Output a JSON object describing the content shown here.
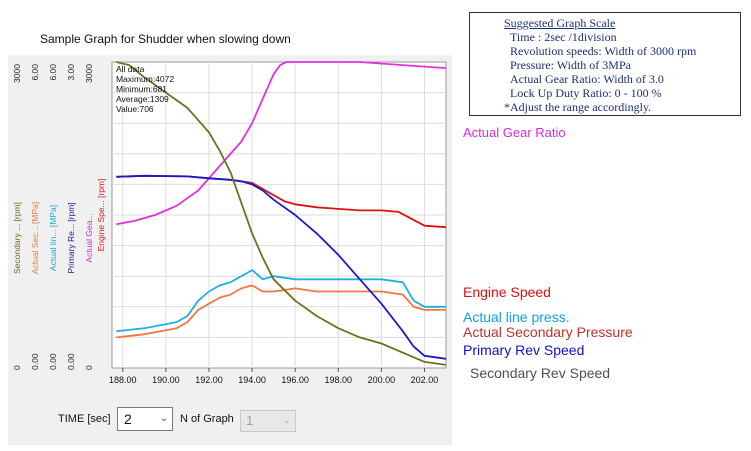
{
  "title": "Sample Graph for Shudder when slowing down",
  "scale_note": {
    "heading": "Suggested Graph Scale",
    "lines": [
      "Time             : 2sec /1division",
      "Revolution speeds: Width of 3000 rpm",
      "Pressure: Width of 3MPa",
      "Actual Gear Ratio: Width of 3.0",
      "Lock Up Duty Ratio: 0 - 100 %"
    ],
    "note": "*Adjust the range accordingly."
  },
  "stats": {
    "line1": "All data",
    "line2": "Maximum:4072",
    "line3": "Minimum:681",
    "line4": "Average:1309",
    "line5": "Value:706"
  },
  "controls": {
    "time_label": "TIME [sec]",
    "time_value": "2",
    "ngraph_label": "N of Graph",
    "ngraph_value": "1"
  },
  "chart_data": {
    "type": "line",
    "xlim": [
      187.5,
      203.0
    ],
    "x_ticks": [
      "188.00",
      "190.00",
      "192.00",
      "194.00",
      "196.00",
      "198.00",
      "200.00",
      "202.00"
    ],
    "x_tick_values": [
      188,
      190,
      192,
      194,
      196,
      198,
      200,
      202
    ],
    "axes": [
      {
        "name": "Secondary ... [rpm]",
        "color": "#6b6b1a",
        "top": "3000",
        "bottom": "0"
      },
      {
        "name": "Actual Sec... [MPa]",
        "color": "#e07a3a",
        "top": "6.00",
        "bottom": "0.00"
      },
      {
        "name": "Actual lin... [MPa]",
        "color": "#20a8d8",
        "top": "6.00",
        "bottom": "0.00"
      },
      {
        "name": "Primary Re... [rpm]",
        "color": "#1a1aa0",
        "top": "3.00",
        "bottom": "0.00"
      },
      {
        "name": "Actual Gea...",
        "color": "#cc30cc",
        "top": "3000",
        "bottom": "0"
      },
      {
        "name": "Engine Spe... [rpm]",
        "color": "#d02020",
        "top": "3000",
        "bottom": "0"
      }
    ],
    "grid": true,
    "series": [
      {
        "name": "Actual Gear Ratio",
        "label_color": "#d030d0",
        "color": "#e030e0",
        "x": [
          187.7,
          188.5,
          189.5,
          190.5,
          191.5,
          192.5,
          193.5,
          194.0,
          194.5,
          195.0,
          195.3,
          195.6,
          196.0,
          197.0,
          199.0,
          201.0,
          203.0
        ],
        "y": [
          0.47,
          0.48,
          0.5,
          0.53,
          0.58,
          0.66,
          0.74,
          0.8,
          0.88,
          0.96,
          0.99,
          1.0,
          1.0,
          1.0,
          1.0,
          0.99,
          0.98
        ]
      },
      {
        "name": "Engine Speed",
        "label_color": "#dd1010",
        "color": "#dd1010",
        "x": [
          187.7,
          189.0,
          191.0,
          192.0,
          193.0,
          194.0,
          194.5,
          195.0,
          195.5,
          196.0,
          197.0,
          198.0,
          199.0,
          200.0,
          200.8,
          202.0,
          203.0
        ],
        "y": [
          0.625,
          0.628,
          0.626,
          0.62,
          0.615,
          0.605,
          0.585,
          0.565,
          0.545,
          0.535,
          0.525,
          0.52,
          0.515,
          0.515,
          0.51,
          0.465,
          0.46
        ]
      },
      {
        "name": "Actual line press.",
        "label_color": "#10a0e0",
        "color": "#20b0e0",
        "x": [
          187.7,
          189.0,
          190.5,
          191.0,
          191.5,
          192.0,
          192.5,
          193.0,
          193.5,
          194.0,
          194.5,
          195.0,
          196.0,
          197.0,
          198.0,
          199.0,
          200.0,
          201.0,
          201.5,
          202.0,
          203.0
        ],
        "y": [
          0.12,
          0.13,
          0.15,
          0.17,
          0.22,
          0.25,
          0.27,
          0.28,
          0.3,
          0.32,
          0.29,
          0.3,
          0.29,
          0.29,
          0.29,
          0.29,
          0.29,
          0.28,
          0.22,
          0.2,
          0.2
        ]
      },
      {
        "name": "Actual Secondary Pressure",
        "label_color": "#c03030",
        "color": "#f07840",
        "x": [
          187.7,
          189.0,
          190.5,
          191.0,
          191.5,
          192.0,
          192.5,
          193.0,
          193.5,
          194.0,
          194.5,
          195.0,
          196.0,
          197.0,
          198.0,
          199.0,
          200.0,
          201.0,
          201.5,
          202.0,
          203.0
        ],
        "y": [
          0.1,
          0.11,
          0.13,
          0.15,
          0.19,
          0.21,
          0.23,
          0.24,
          0.26,
          0.27,
          0.25,
          0.25,
          0.26,
          0.25,
          0.25,
          0.25,
          0.25,
          0.24,
          0.2,
          0.19,
          0.19
        ]
      },
      {
        "name": "Primary Rev Speed",
        "label_color": "#1010c0",
        "color": "#1a1acc",
        "x": [
          187.7,
          189.0,
          191.0,
          192.0,
          193.0,
          193.5,
          194.0,
          194.5,
          195.0,
          196.0,
          197.0,
          198.0,
          199.0,
          200.0,
          201.0,
          201.5,
          202.0,
          203.0
        ],
        "y": [
          0.625,
          0.628,
          0.626,
          0.62,
          0.615,
          0.61,
          0.6,
          0.58,
          0.55,
          0.5,
          0.44,
          0.37,
          0.29,
          0.21,
          0.12,
          0.07,
          0.04,
          0.03
        ]
      },
      {
        "name": "Secondary Rev Speed",
        "label_color": "#505050",
        "color": "#707020",
        "x": [
          187.7,
          188.3,
          189.0,
          190.0,
          191.0,
          192.0,
          192.5,
          193.0,
          193.5,
          194.0,
          194.5,
          195.0,
          196.0,
          197.0,
          198.0,
          199.0,
          200.0,
          201.0,
          202.0,
          203.0
        ],
        "y": [
          1.0,
          0.99,
          0.95,
          0.9,
          0.85,
          0.77,
          0.71,
          0.64,
          0.54,
          0.44,
          0.36,
          0.29,
          0.22,
          0.17,
          0.13,
          0.1,
          0.08,
          0.05,
          0.02,
          0.01
        ]
      }
    ]
  }
}
